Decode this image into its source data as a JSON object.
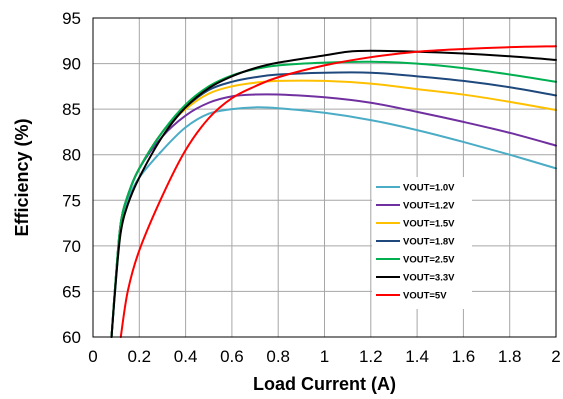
{
  "chart_data": {
    "type": "line",
    "title": "",
    "xlabel": "Load Current (A)",
    "ylabel": "Efficiency (%)",
    "xlim": [
      0,
      2
    ],
    "ylim": [
      60,
      95
    ],
    "x_ticks": [
      0,
      0.2,
      0.4,
      0.6,
      0.8,
      1,
      1.2,
      1.4,
      1.6,
      1.8,
      2
    ],
    "x_tick_labels": [
      "0",
      "0.2",
      "0.4",
      "0.6",
      "0.8",
      "1",
      "1.2",
      "1.4",
      "1.6",
      "1.8",
      "2"
    ],
    "y_ticks": [
      60,
      65,
      70,
      75,
      80,
      85,
      90,
      95
    ],
    "y_tick_labels": [
      "60",
      "65",
      "70",
      "75",
      "80",
      "85",
      "90",
      "95"
    ],
    "grid": true,
    "legend_position": "center-right",
    "series": [
      {
        "name": "VOUT=1.0V",
        "color": "#4bacc6",
        "points": [
          [
            0.08,
            60
          ],
          [
            0.1,
            66.5
          ],
          [
            0.12,
            72
          ],
          [
            0.15,
            75
          ],
          [
            0.2,
            77.5
          ],
          [
            0.3,
            80.5
          ],
          [
            0.4,
            83
          ],
          [
            0.5,
            84.5
          ],
          [
            0.6,
            85
          ],
          [
            0.7,
            85.2
          ],
          [
            0.8,
            85.1
          ],
          [
            1.0,
            84.6
          ],
          [
            1.2,
            83.8
          ],
          [
            1.4,
            82.7
          ],
          [
            1.6,
            81.4
          ],
          [
            1.8,
            80
          ],
          [
            2.0,
            78.5
          ]
        ]
      },
      {
        "name": "VOUT=1.2V",
        "color": "#7030a0",
        "points": [
          [
            0.08,
            60
          ],
          [
            0.1,
            67
          ],
          [
            0.12,
            72.5
          ],
          [
            0.15,
            75.5
          ],
          [
            0.2,
            78.5
          ],
          [
            0.3,
            82
          ],
          [
            0.4,
            84.3
          ],
          [
            0.5,
            85.7
          ],
          [
            0.6,
            86.4
          ],
          [
            0.7,
            86.6
          ],
          [
            0.8,
            86.6
          ],
          [
            1.0,
            86.3
          ],
          [
            1.2,
            85.7
          ],
          [
            1.4,
            84.7
          ],
          [
            1.6,
            83.6
          ],
          [
            1.8,
            82.4
          ],
          [
            2.0,
            81
          ]
        ]
      },
      {
        "name": "VOUT=1.5V",
        "color": "#ffc000",
        "points": [
          [
            0.08,
            60
          ],
          [
            0.1,
            67
          ],
          [
            0.12,
            72.5
          ],
          [
            0.15,
            75.5
          ],
          [
            0.2,
            78.5
          ],
          [
            0.3,
            82.5
          ],
          [
            0.4,
            85
          ],
          [
            0.5,
            86.7
          ],
          [
            0.6,
            87.5
          ],
          [
            0.7,
            87.9
          ],
          [
            0.8,
            88.1
          ],
          [
            1.0,
            88.1
          ],
          [
            1.2,
            87.8
          ],
          [
            1.4,
            87.2
          ],
          [
            1.6,
            86.6
          ],
          [
            1.8,
            85.8
          ],
          [
            2.0,
            84.9
          ]
        ]
      },
      {
        "name": "VOUT=1.8V",
        "color": "#1f497d",
        "points": [
          [
            0.08,
            60
          ],
          [
            0.1,
            67
          ],
          [
            0.12,
            72.5
          ],
          [
            0.15,
            75.5
          ],
          [
            0.2,
            78.5
          ],
          [
            0.3,
            82.5
          ],
          [
            0.4,
            85.2
          ],
          [
            0.5,
            87.1
          ],
          [
            0.6,
            88
          ],
          [
            0.7,
            88.5
          ],
          [
            0.8,
            88.8
          ],
          [
            1.0,
            89
          ],
          [
            1.2,
            89
          ],
          [
            1.4,
            88.6
          ],
          [
            1.6,
            88.1
          ],
          [
            1.8,
            87.4
          ],
          [
            2.0,
            86.5
          ]
        ]
      },
      {
        "name": "VOUT=2.5V",
        "color": "#00b050",
        "points": [
          [
            0.08,
            60
          ],
          [
            0.1,
            67
          ],
          [
            0.12,
            72.5
          ],
          [
            0.15,
            75.5
          ],
          [
            0.2,
            78.5
          ],
          [
            0.3,
            82.5
          ],
          [
            0.4,
            85.5
          ],
          [
            0.5,
            87.5
          ],
          [
            0.6,
            88.7
          ],
          [
            0.7,
            89.4
          ],
          [
            0.8,
            89.8
          ],
          [
            1.0,
            90.1
          ],
          [
            1.2,
            90.2
          ],
          [
            1.4,
            90
          ],
          [
            1.6,
            89.5
          ],
          [
            1.8,
            88.8
          ],
          [
            2.0,
            88
          ]
        ]
      },
      {
        "name": "VOUT=3.3V",
        "color": "#000000",
        "points": [
          [
            0.08,
            60
          ],
          [
            0.1,
            66.5
          ],
          [
            0.12,
            71.5
          ],
          [
            0.15,
            74.5
          ],
          [
            0.2,
            77.5
          ],
          [
            0.3,
            82
          ],
          [
            0.4,
            85.2
          ],
          [
            0.5,
            87.3
          ],
          [
            0.6,
            88.6
          ],
          [
            0.7,
            89.5
          ],
          [
            0.8,
            90.1
          ],
          [
            1.0,
            90.9
          ],
          [
            1.1,
            91.3
          ],
          [
            1.2,
            91.4
          ],
          [
            1.4,
            91.3
          ],
          [
            1.6,
            91.1
          ],
          [
            1.8,
            90.8
          ],
          [
            2.0,
            90.4
          ]
        ]
      },
      {
        "name": "VOUT=5V",
        "color": "#ff0000",
        "points": [
          [
            0.12,
            60
          ],
          [
            0.15,
            65
          ],
          [
            0.2,
            69.5
          ],
          [
            0.3,
            75.5
          ],
          [
            0.4,
            80.5
          ],
          [
            0.5,
            84
          ],
          [
            0.6,
            86.2
          ],
          [
            0.7,
            87.5
          ],
          [
            0.8,
            88.5
          ],
          [
            1.0,
            89.8
          ],
          [
            1.2,
            90.7
          ],
          [
            1.4,
            91.3
          ],
          [
            1.6,
            91.6
          ],
          [
            1.8,
            91.8
          ],
          [
            2.0,
            91.9
          ]
        ]
      }
    ]
  }
}
